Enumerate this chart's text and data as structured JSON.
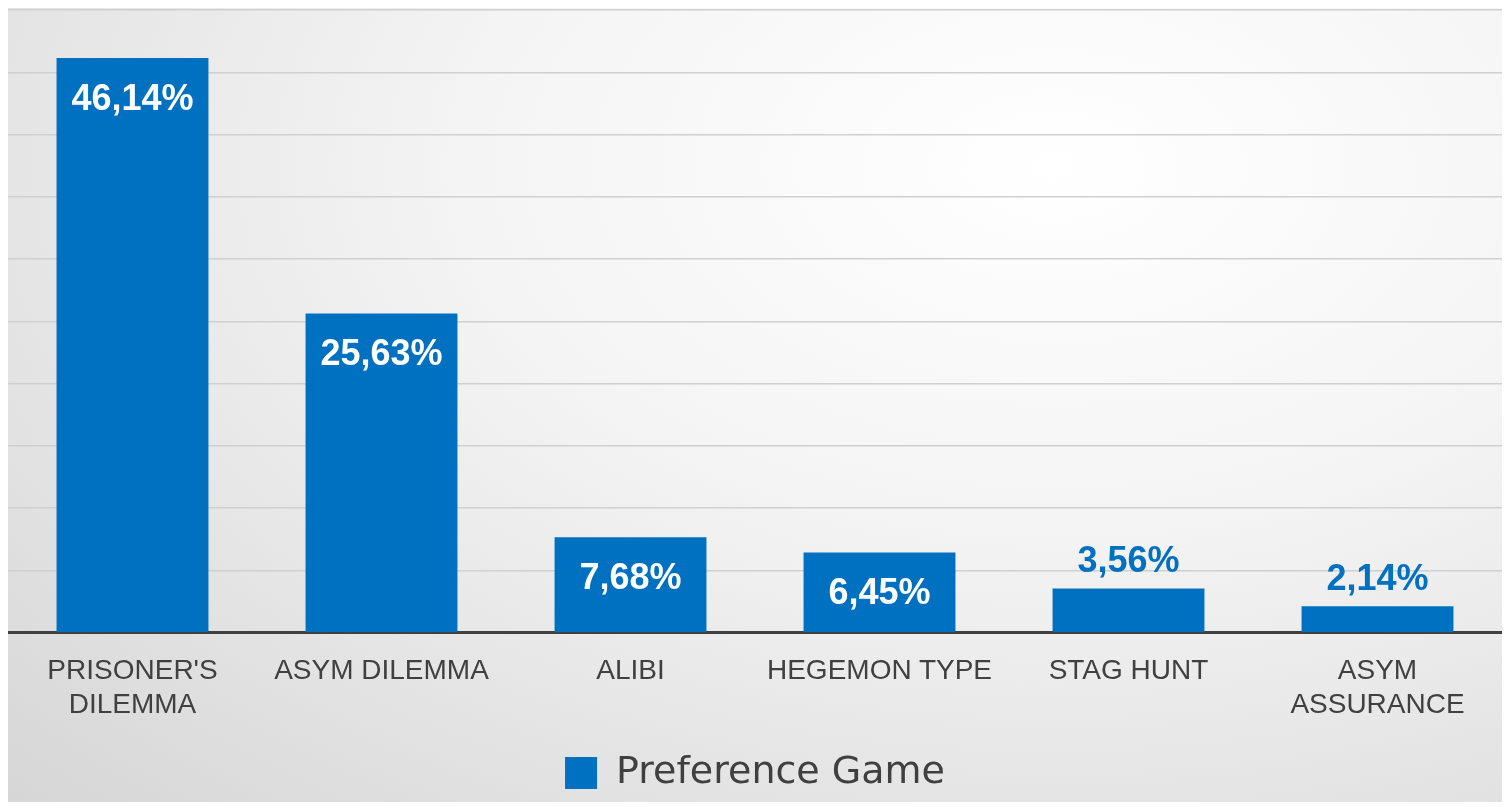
{
  "chart_data": {
    "type": "bar",
    "categories": [
      "PRISONER'S DILEMMA",
      "ASYM DILEMMA",
      "ALIBI",
      "HEGEMON TYPE",
      "STAG HUNT",
      "ASYM ASSURANCE"
    ],
    "series": [
      {
        "name": "Preference Game",
        "color": "#0070c0",
        "values": [
          46.14,
          25.63,
          7.68,
          6.45,
          3.56,
          2.14
        ],
        "value_labels": [
          "46,14%",
          "25,63%",
          "7,68%",
          "6,45%",
          "3,56%",
          "2,14%"
        ]
      }
    ],
    "tick_labels": "x",
    "grid": "y",
    "legend": "bottom"
  }
}
